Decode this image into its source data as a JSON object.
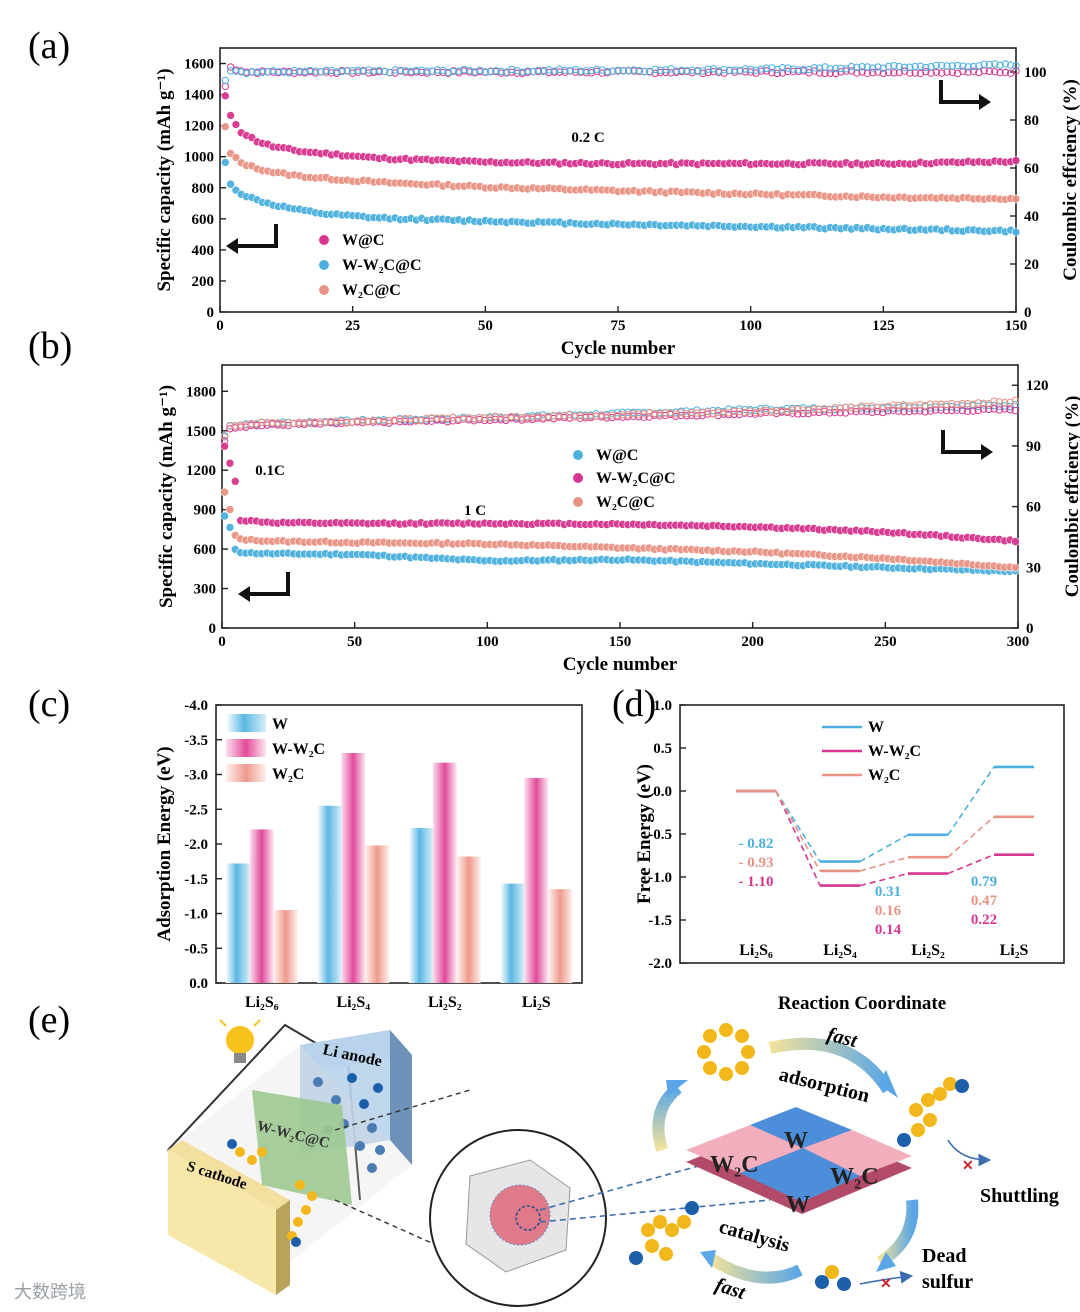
{
  "colors": {
    "pink": "#d6368f",
    "blue": "#4bb0dd",
    "salmon": "#e89383",
    "pinkLight": "#e9a3c8",
    "blueLight": "#9fd3ea"
  },
  "panel_labels": {
    "a": "(a)",
    "b": "(b)",
    "c": "(c)",
    "d": "(d)",
    "e": "(e)"
  },
  "chart_data": [
    {
      "id": "a",
      "type": "scatter",
      "xlabel": "Cycle number",
      "ylabel": "Specific capacity (mAh g⁻¹)",
      "y2label": "Coulombic effciency (%)",
      "xlim": [
        0,
        150
      ],
      "ylim": [
        0,
        1700
      ],
      "y2lim": [
        0,
        110
      ],
      "xticks": [
        "0",
        "25",
        "50",
        "75",
        "100",
        "125",
        "150"
      ],
      "yticks": [
        "0",
        "200",
        "400",
        "600",
        "800",
        "1000",
        "1200",
        "1400",
        "1600"
      ],
      "y2ticks": [
        "0",
        "20",
        "40",
        "60",
        "80",
        "100"
      ],
      "annotation": "0.2 C",
      "series": [
        {
          "name": "W@C",
          "color": "pink",
          "x": [
            1,
            2,
            4,
            7,
            10,
            15,
            20,
            30,
            50,
            75,
            100,
            125,
            150
          ],
          "y": [
            1390,
            1260,
            1160,
            1100,
            1065,
            1035,
            1020,
            990,
            965,
            955,
            955,
            955,
            970
          ]
        },
        {
          "name": "W-W₂C@C",
          "color": "blue",
          "x": [
            1,
            2,
            4,
            7,
            10,
            15,
            20,
            30,
            50,
            75,
            100,
            125,
            150
          ],
          "y": [
            960,
            820,
            760,
            720,
            690,
            655,
            630,
            605,
            585,
            565,
            550,
            535,
            520
          ]
        },
        {
          "name": "W₂C@C",
          "color": "salmon",
          "x": [
            1,
            2,
            4,
            7,
            10,
            15,
            20,
            30,
            50,
            75,
            100,
            125,
            150
          ],
          "y": [
            1190,
            1020,
            960,
            925,
            900,
            875,
            860,
            835,
            805,
            780,
            760,
            740,
            730
          ]
        }
      ],
      "ce_series": [
        {
          "name": "W@C CE",
          "color": "pink",
          "x": [
            1,
            2,
            5,
            150
          ],
          "y": [
            94,
            102,
            100,
            100
          ]
        },
        {
          "name": "W-W₂C@C CE",
          "color": "blue",
          "x": [
            1,
            2,
            5,
            100,
            150
          ],
          "y": [
            97,
            101,
            100,
            101,
            103
          ]
        }
      ]
    },
    {
      "id": "b",
      "type": "scatter",
      "xlabel": "Cycle number",
      "ylabel": "Specific capacity (mAh g⁻¹)",
      "y2label": "Coulombic effciency (%)",
      "xlim": [
        0,
        300
      ],
      "ylim": [
        0,
        2000
      ],
      "y2lim": [
        0,
        130
      ],
      "xticks": [
        "0",
        "50",
        "100",
        "150",
        "200",
        "250",
        "300"
      ],
      "yticks": [
        "0",
        "300",
        "600",
        "900",
        "1200",
        "1500",
        "1800"
      ],
      "y2ticks": [
        "0",
        "30",
        "60",
        "90",
        "120"
      ],
      "annotations": [
        "0.1C",
        "1 C"
      ],
      "series": [
        {
          "name": "W@C",
          "color": "blue",
          "x": [
            1,
            2,
            3,
            4,
            5,
            6,
            10,
            20,
            50,
            100,
            150,
            200,
            250,
            300
          ],
          "y": [
            850,
            800,
            760,
            740,
            600,
            580,
            570,
            565,
            560,
            510,
            520,
            490,
            460,
            430
          ]
        },
        {
          "name": "W-W₂C@C",
          "color": "pink",
          "x": [
            1,
            2,
            3,
            4,
            5,
            6,
            10,
            20,
            50,
            100,
            150,
            200,
            250,
            300
          ],
          "y": [
            1380,
            1300,
            1250,
            1150,
            1120,
            820,
            815,
            800,
            795,
            795,
            790,
            770,
            730,
            660
          ]
        },
        {
          "name": "W₂C@C",
          "color": "salmon",
          "x": [
            1,
            2,
            3,
            4,
            5,
            6,
            10,
            20,
            50,
            100,
            150,
            200,
            250,
            300
          ],
          "y": [
            1030,
            960,
            900,
            850,
            700,
            680,
            670,
            660,
            650,
            640,
            610,
            580,
            530,
            460
          ]
        }
      ],
      "ce_series": [
        {
          "name": "W@C CE",
          "color": "blue",
          "x": [
            1,
            3,
            10,
            100,
            200,
            300
          ],
          "y": [
            95,
            100,
            101,
            104,
            108,
            110
          ]
        },
        {
          "name": "W-W₂C@C CE",
          "color": "pink",
          "x": [
            1,
            3,
            10,
            100,
            200,
            300
          ],
          "y": [
            93,
            99,
            100,
            103,
            106,
            108
          ]
        },
        {
          "name": "W₂C@C CE",
          "color": "salmon",
          "x": [
            1,
            3,
            10,
            100,
            200,
            300
          ],
          "y": [
            94,
            100,
            101,
            104,
            107,
            112
          ]
        }
      ]
    },
    {
      "id": "c",
      "type": "bar",
      "ylabel": "Adsorption Energy (eV)",
      "ylim": [
        0,
        -4.0
      ],
      "yticks": [
        "0.0",
        "-0.5",
        "-1.0",
        "-1.5",
        "-2.0",
        "-2.5",
        "-3.0",
        "-3.5",
        "-4.0"
      ],
      "categories": [
        "Li₂S₆",
        "Li₂S₄",
        "Li₂S₂",
        "Li₂S"
      ],
      "series": [
        {
          "name": "W",
          "color": "blue",
          "values": [
            -1.72,
            -2.55,
            -2.23,
            -1.43
          ]
        },
        {
          "name": "W-W₂C",
          "color": "pink",
          "values": [
            -2.21,
            -3.31,
            -3.17,
            -2.95
          ]
        },
        {
          "name": "W₂C",
          "color": "salmon",
          "values": [
            -1.05,
            -1.98,
            -1.82,
            -1.35
          ]
        }
      ]
    },
    {
      "id": "d",
      "type": "line",
      "xlabel": "Reaction Coordinate",
      "ylabel": "Free Energy (eV)",
      "ylim": [
        -2.0,
        1.0
      ],
      "yticks": [
        "1.0",
        "0.5",
        "0.0",
        "-0.5",
        "-1.0",
        "-1.5",
        "-2.0"
      ],
      "categories": [
        "Li₂S₆",
        "Li₂S₄",
        "Li₂S₂",
        "Li₂S"
      ],
      "series": [
        {
          "name": "W",
          "color": "blue",
          "values": [
            0,
            -0.82,
            -0.51,
            0.28
          ]
        },
        {
          "name": "W-W₂C",
          "color": "pink",
          "values": [
            0,
            -1.1,
            -0.96,
            -0.74
          ]
        },
        {
          "name": "W₂C",
          "color": "salmon",
          "values": [
            0,
            -0.93,
            -0.77,
            -0.3
          ]
        }
      ],
      "step_labels": [
        {
          "series": "blue",
          "items": [
            "- 0.82",
            "0.31",
            "0.79"
          ]
        },
        {
          "series": "salmon",
          "items": [
            "- 0.93",
            "0.16",
            "0.47"
          ]
        },
        {
          "series": "pink",
          "items": [
            "- 1.10",
            "0.14",
            "0.22"
          ]
        }
      ]
    }
  ],
  "schematic": {
    "li_anode": "Li anode",
    "separator": "W-W₂C@C",
    "s_cathode": "S cathode",
    "tiles": [
      "W₂C",
      "W",
      "W₂C",
      "W"
    ],
    "fast_top": "fast",
    "adsorption": "adsorption",
    "catalysis": "catalysis",
    "fast_bottom": "fast",
    "shuttling": "Shuttling",
    "dead_sulfur_1": "Dead",
    "dead_sulfur_2": "sulfur"
  },
  "watermark": "大数跨境"
}
